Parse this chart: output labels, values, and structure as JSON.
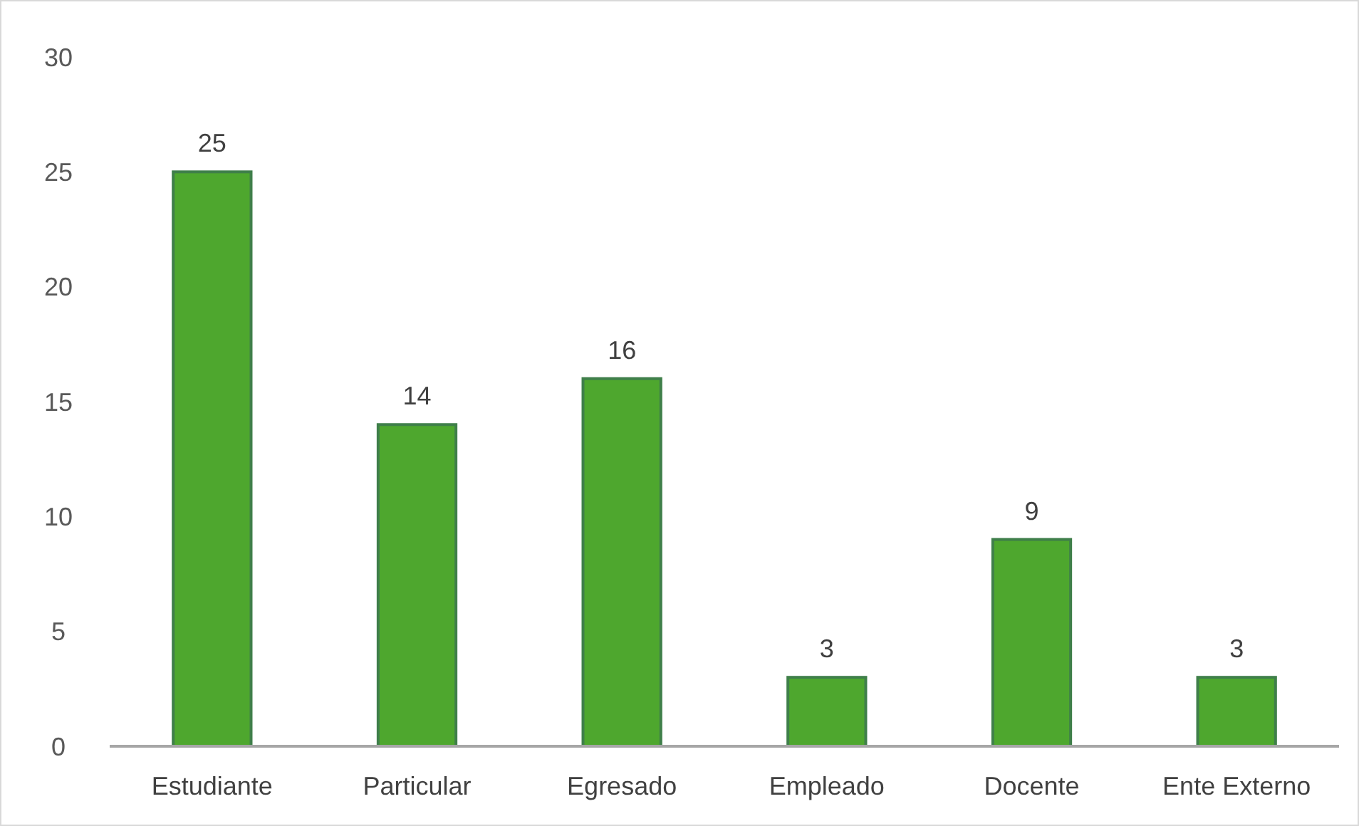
{
  "chart_data": {
    "type": "bar",
    "categories": [
      "Estudiante",
      "Particular",
      "Egresado",
      "Empleado",
      "Docente",
      "Ente Externo"
    ],
    "values": [
      25,
      14,
      16,
      3,
      9,
      3
    ],
    "color": "#4ea72e",
    "ylim": [
      0,
      30
    ],
    "yticks": [
      0,
      5,
      10,
      15,
      20,
      25,
      30
    ],
    "grid": false,
    "data_labels": true
  }
}
